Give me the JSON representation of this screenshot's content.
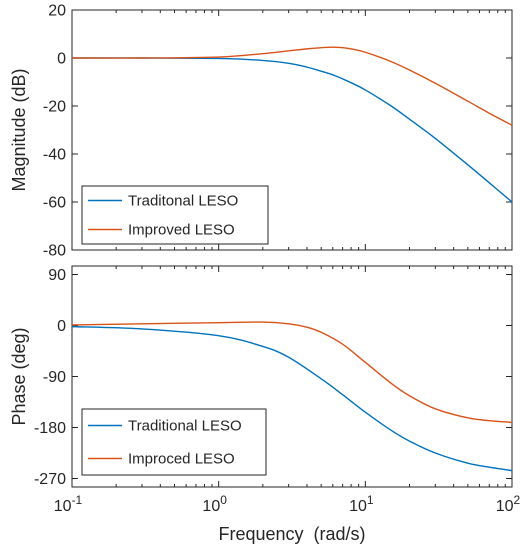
{
  "chart_data": [
    {
      "type": "line",
      "panel": "magnitude",
      "ylabel": "Magnitude (dB)",
      "xscale": "log",
      "xlim": [
        0.1,
        100
      ],
      "ylim": [
        -80,
        20
      ],
      "yticks": [
        20,
        0,
        -20,
        -40,
        -60,
        -80
      ],
      "ytick_labels": [
        "20",
        "0",
        "-20",
        "-40",
        "-60",
        "-80"
      ],
      "grid": false,
      "legend_position": "bottom-left",
      "series": [
        {
          "name": "Traditonal LESO",
          "color": "#0072BD",
          "x": [
            0.1,
            0.3,
            1,
            2,
            3,
            4,
            5,
            6,
            7,
            8,
            10,
            15,
            20,
            30,
            50,
            70,
            100
          ],
          "y": [
            0,
            0,
            -0.2,
            -1,
            -2.2,
            -3.8,
            -5.5,
            -7,
            -8.7,
            -10.3,
            -13.3,
            -20,
            -25.5,
            -33.5,
            -44.5,
            -52,
            -60
          ]
        },
        {
          "name": "Improved LESO",
          "color": "#D95319",
          "x": [
            0.1,
            0.3,
            1,
            2,
            3,
            4,
            5,
            6,
            7,
            8,
            10,
            15,
            20,
            30,
            50,
            70,
            100
          ],
          "y": [
            0,
            0,
            0.4,
            1.8,
            3,
            3.8,
            4.3,
            4.5,
            4.3,
            3.8,
            2.4,
            -1.5,
            -5,
            -10.5,
            -18,
            -23,
            -28
          ]
        }
      ]
    },
    {
      "type": "line",
      "panel": "phase",
      "xlabel": "Frequency  (rad/s)",
      "ylabel": "Phase (deg)",
      "xscale": "log",
      "xlim": [
        0.1,
        100
      ],
      "ylim": [
        -285,
        105
      ],
      "xticks": [
        0.1,
        1,
        10,
        100
      ],
      "xtick_bases": [
        "10",
        "10",
        "10",
        "10"
      ],
      "xtick_exponents": [
        "-1",
        "0",
        "1",
        "2"
      ],
      "yticks": [
        90,
        0,
        -90,
        -180,
        -270
      ],
      "ytick_labels": [
        "90",
        "0",
        "-90",
        "-180",
        "-270"
      ],
      "grid": false,
      "legend_position": "bottom-left",
      "series": [
        {
          "name": "Traditional LESO",
          "color": "#0072BD",
          "x": [
            0.1,
            0.3,
            1,
            2,
            3,
            5,
            7,
            10,
            15,
            20,
            30,
            50,
            70,
            100
          ],
          "y": [
            -2,
            -6,
            -18,
            -37,
            -56,
            -94,
            -122,
            -153,
            -185,
            -204,
            -225,
            -243,
            -250,
            -256
          ]
        },
        {
          "name": "Improced LESO",
          "color": "#D95319",
          "x": [
            0.1,
            0.3,
            1,
            2,
            3,
            4,
            5,
            7,
            10,
            15,
            20,
            30,
            50,
            70,
            100
          ],
          "y": [
            1,
            3,
            5,
            6,
            3,
            -3,
            -12,
            -33,
            -65,
            -102,
            -124,
            -147,
            -163,
            -168,
            -171
          ]
        }
      ]
    }
  ]
}
